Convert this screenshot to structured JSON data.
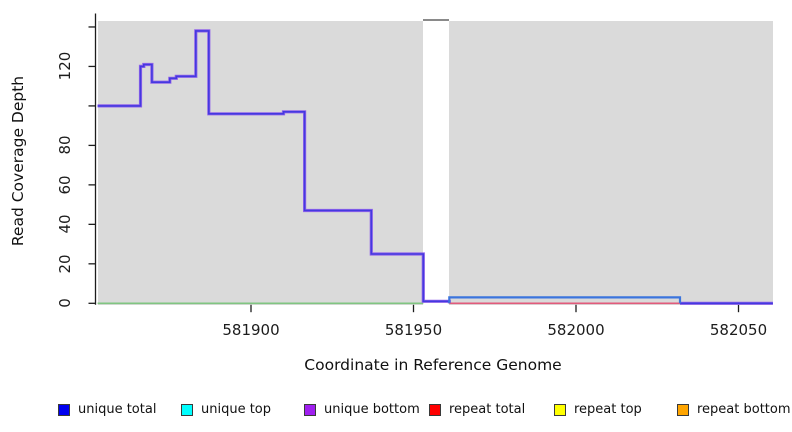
{
  "figure": {
    "x_axis_title": "Coordinate in Reference Genome",
    "y_axis_title": "Read Coverage Depth"
  },
  "axes": {
    "x_ticks": [
      {
        "value": 581900,
        "label": "581900"
      },
      {
        "value": 581950,
        "label": "581950"
      },
      {
        "value": 582000,
        "label": "582000"
      },
      {
        "value": 582050,
        "label": "582050"
      }
    ],
    "y_ticks": [
      {
        "value": 0,
        "label": "0"
      },
      {
        "value": 20,
        "label": "20"
      },
      {
        "value": 40,
        "label": "40"
      },
      {
        "value": 60,
        "label": "60"
      },
      {
        "value": 80,
        "label": "80"
      },
      {
        "value": 100,
        "label": ""
      },
      {
        "value": 120,
        "label": "120"
      },
      {
        "value": 140,
        "label": ""
      }
    ]
  },
  "chart_data": {
    "type": "line",
    "subtype": "step",
    "title": "",
    "xlabel": "Coordinate in Reference Genome",
    "ylabel": "Read Coverage Depth",
    "xlim": [
      581852.8,
      582060.6
    ],
    "ylim": [
      0,
      143.5
    ],
    "grid": false,
    "legend_position": "bottom",
    "plot_background": "#DADADA",
    "coverage_gap": {
      "from": 581953,
      "to": 581961
    },
    "background_blocks": [
      {
        "from": 581852.8,
        "to": 581953
      },
      {
        "from": 581961,
        "to": 582060.6
      }
    ],
    "series": [
      {
        "name": "unique total",
        "color": "#0000F0",
        "steps": [
          [
            581852.8,
            100
          ],
          [
            581866,
            120
          ],
          [
            581867,
            121
          ],
          [
            581869.5,
            112
          ],
          [
            581875,
            114
          ],
          [
            581877,
            115
          ],
          [
            581883,
            138
          ],
          [
            581887,
            96
          ],
          [
            581910,
            97
          ],
          [
            581916.5,
            47
          ],
          [
            581937,
            25
          ],
          [
            581953,
            1
          ],
          [
            581961,
            3
          ],
          [
            582032,
            0
          ],
          [
            582060.6,
            0
          ]
        ]
      },
      {
        "name": "unique top",
        "color": "#00FFFF",
        "steps": [
          [
            581852.8,
            0
          ],
          [
            581961,
            3
          ],
          [
            582032,
            0
          ],
          [
            582060.6,
            0
          ]
        ]
      },
      {
        "name": "unique bottom",
        "color": "#A020F0",
        "steps": [
          [
            581852.8,
            100
          ],
          [
            581866,
            120
          ],
          [
            581867,
            121
          ],
          [
            581869.5,
            112
          ],
          [
            581875,
            114
          ],
          [
            581877,
            115
          ],
          [
            581883,
            138
          ],
          [
            581887,
            96
          ],
          [
            581910,
            97
          ],
          [
            581916.5,
            47
          ],
          [
            581937,
            25
          ],
          [
            581953,
            1
          ],
          [
            581961,
            0
          ],
          [
            582060.6,
            0
          ]
        ]
      },
      {
        "name": "repeat total",
        "color": "#FF0000",
        "steps": [
          [
            581961,
            0
          ],
          [
            582032,
            0
          ]
        ]
      },
      {
        "name": "repeat top",
        "color": "#FFFF00",
        "steps": []
      },
      {
        "name": "repeat bottom",
        "color": "#FFA500",
        "steps": []
      }
    ],
    "rendered_lines": [
      {
        "name": "baseline-left-green",
        "layers": [
          {
            "color": "#80C581",
            "w": 1.6
          }
        ],
        "segments": [
          [
            [
              581852.8,
              0
            ],
            [
              581953,
              0
            ]
          ]
        ]
      },
      {
        "name": "unique-main-purple-blue",
        "layers": [
          {
            "color": "#9265EA",
            "w": 3.2
          },
          {
            "color": "#4439E0",
            "w": 1.6
          }
        ],
        "segments": [
          [
            [
              581852.8,
              100
            ],
            [
              581866,
              120
            ],
            [
              581867,
              121
            ],
            [
              581869.5,
              112
            ],
            [
              581875,
              114
            ],
            [
              581877,
              115
            ],
            [
              581883,
              138
            ],
            [
              581887,
              96
            ],
            [
              581910,
              97
            ],
            [
              581916.5,
              47
            ],
            [
              581937,
              25
            ],
            [
              581953,
              1
            ],
            [
              581961,
              0
            ]
          ],
          [
            [
              582032,
              0
            ],
            [
              582060.6,
              0
            ]
          ]
        ]
      },
      {
        "name": "repeat-total-red",
        "layers": [
          {
            "color": "#E25B7B",
            "w": 1.6
          }
        ],
        "segments": [
          [
            [
              581961,
              0
            ],
            [
              582032,
              0
            ]
          ]
        ]
      },
      {
        "name": "unique-top-blue",
        "layers": [
          {
            "color": "#3B74DD",
            "w": 2.2
          }
        ],
        "segments": [
          [
            [
              581961,
              0
            ],
            [
              581961,
              3
            ],
            [
              582032,
              3
            ],
            [
              582032,
              0
            ]
          ]
        ]
      }
    ]
  },
  "legend": {
    "items": [
      {
        "label": "unique total",
        "color": "#0000F0"
      },
      {
        "label": "unique top",
        "color": "#00FFFF"
      },
      {
        "label": "unique bottom",
        "color": "#A020F0"
      },
      {
        "label": "repeat total",
        "color": "#FF0000"
      },
      {
        "label": "repeat top",
        "color": "#FFFF00"
      },
      {
        "label": "repeat bottom",
        "color": "#FFA500"
      }
    ]
  }
}
